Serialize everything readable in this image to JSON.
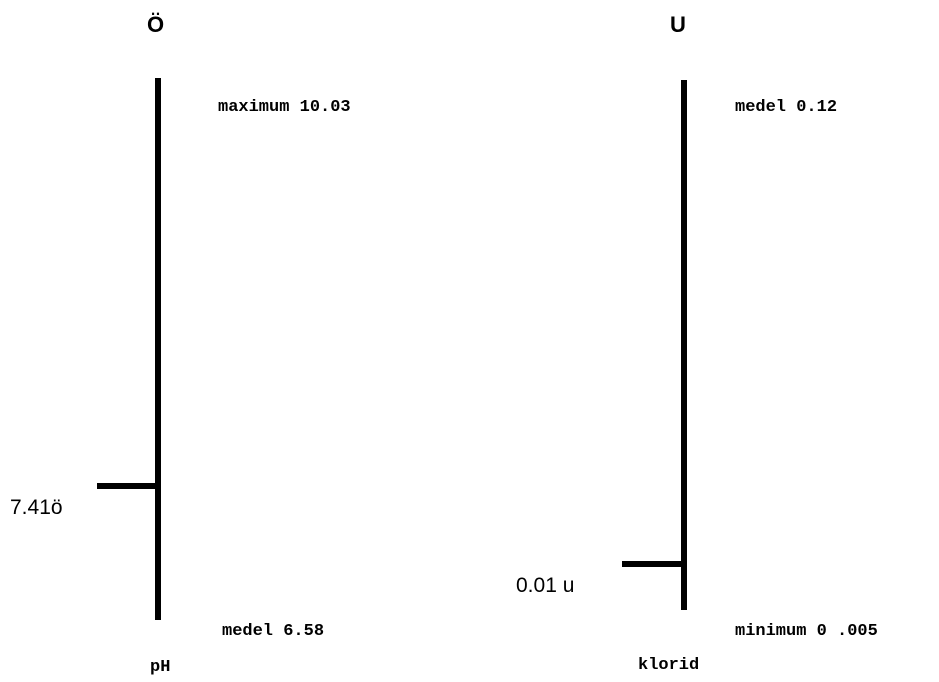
{
  "panels": [
    {
      "title": "Ö",
      "top_label": "maximum 10.03",
      "bottom_label": "medel 6.58",
      "marker_label": "7.41ö",
      "axis_name": "pH"
    },
    {
      "title": "U",
      "top_label": "medel 0.12",
      "bottom_label": "minimum 0 .005",
      "marker_label": "0.01 u",
      "axis_name": "klorid"
    }
  ]
}
